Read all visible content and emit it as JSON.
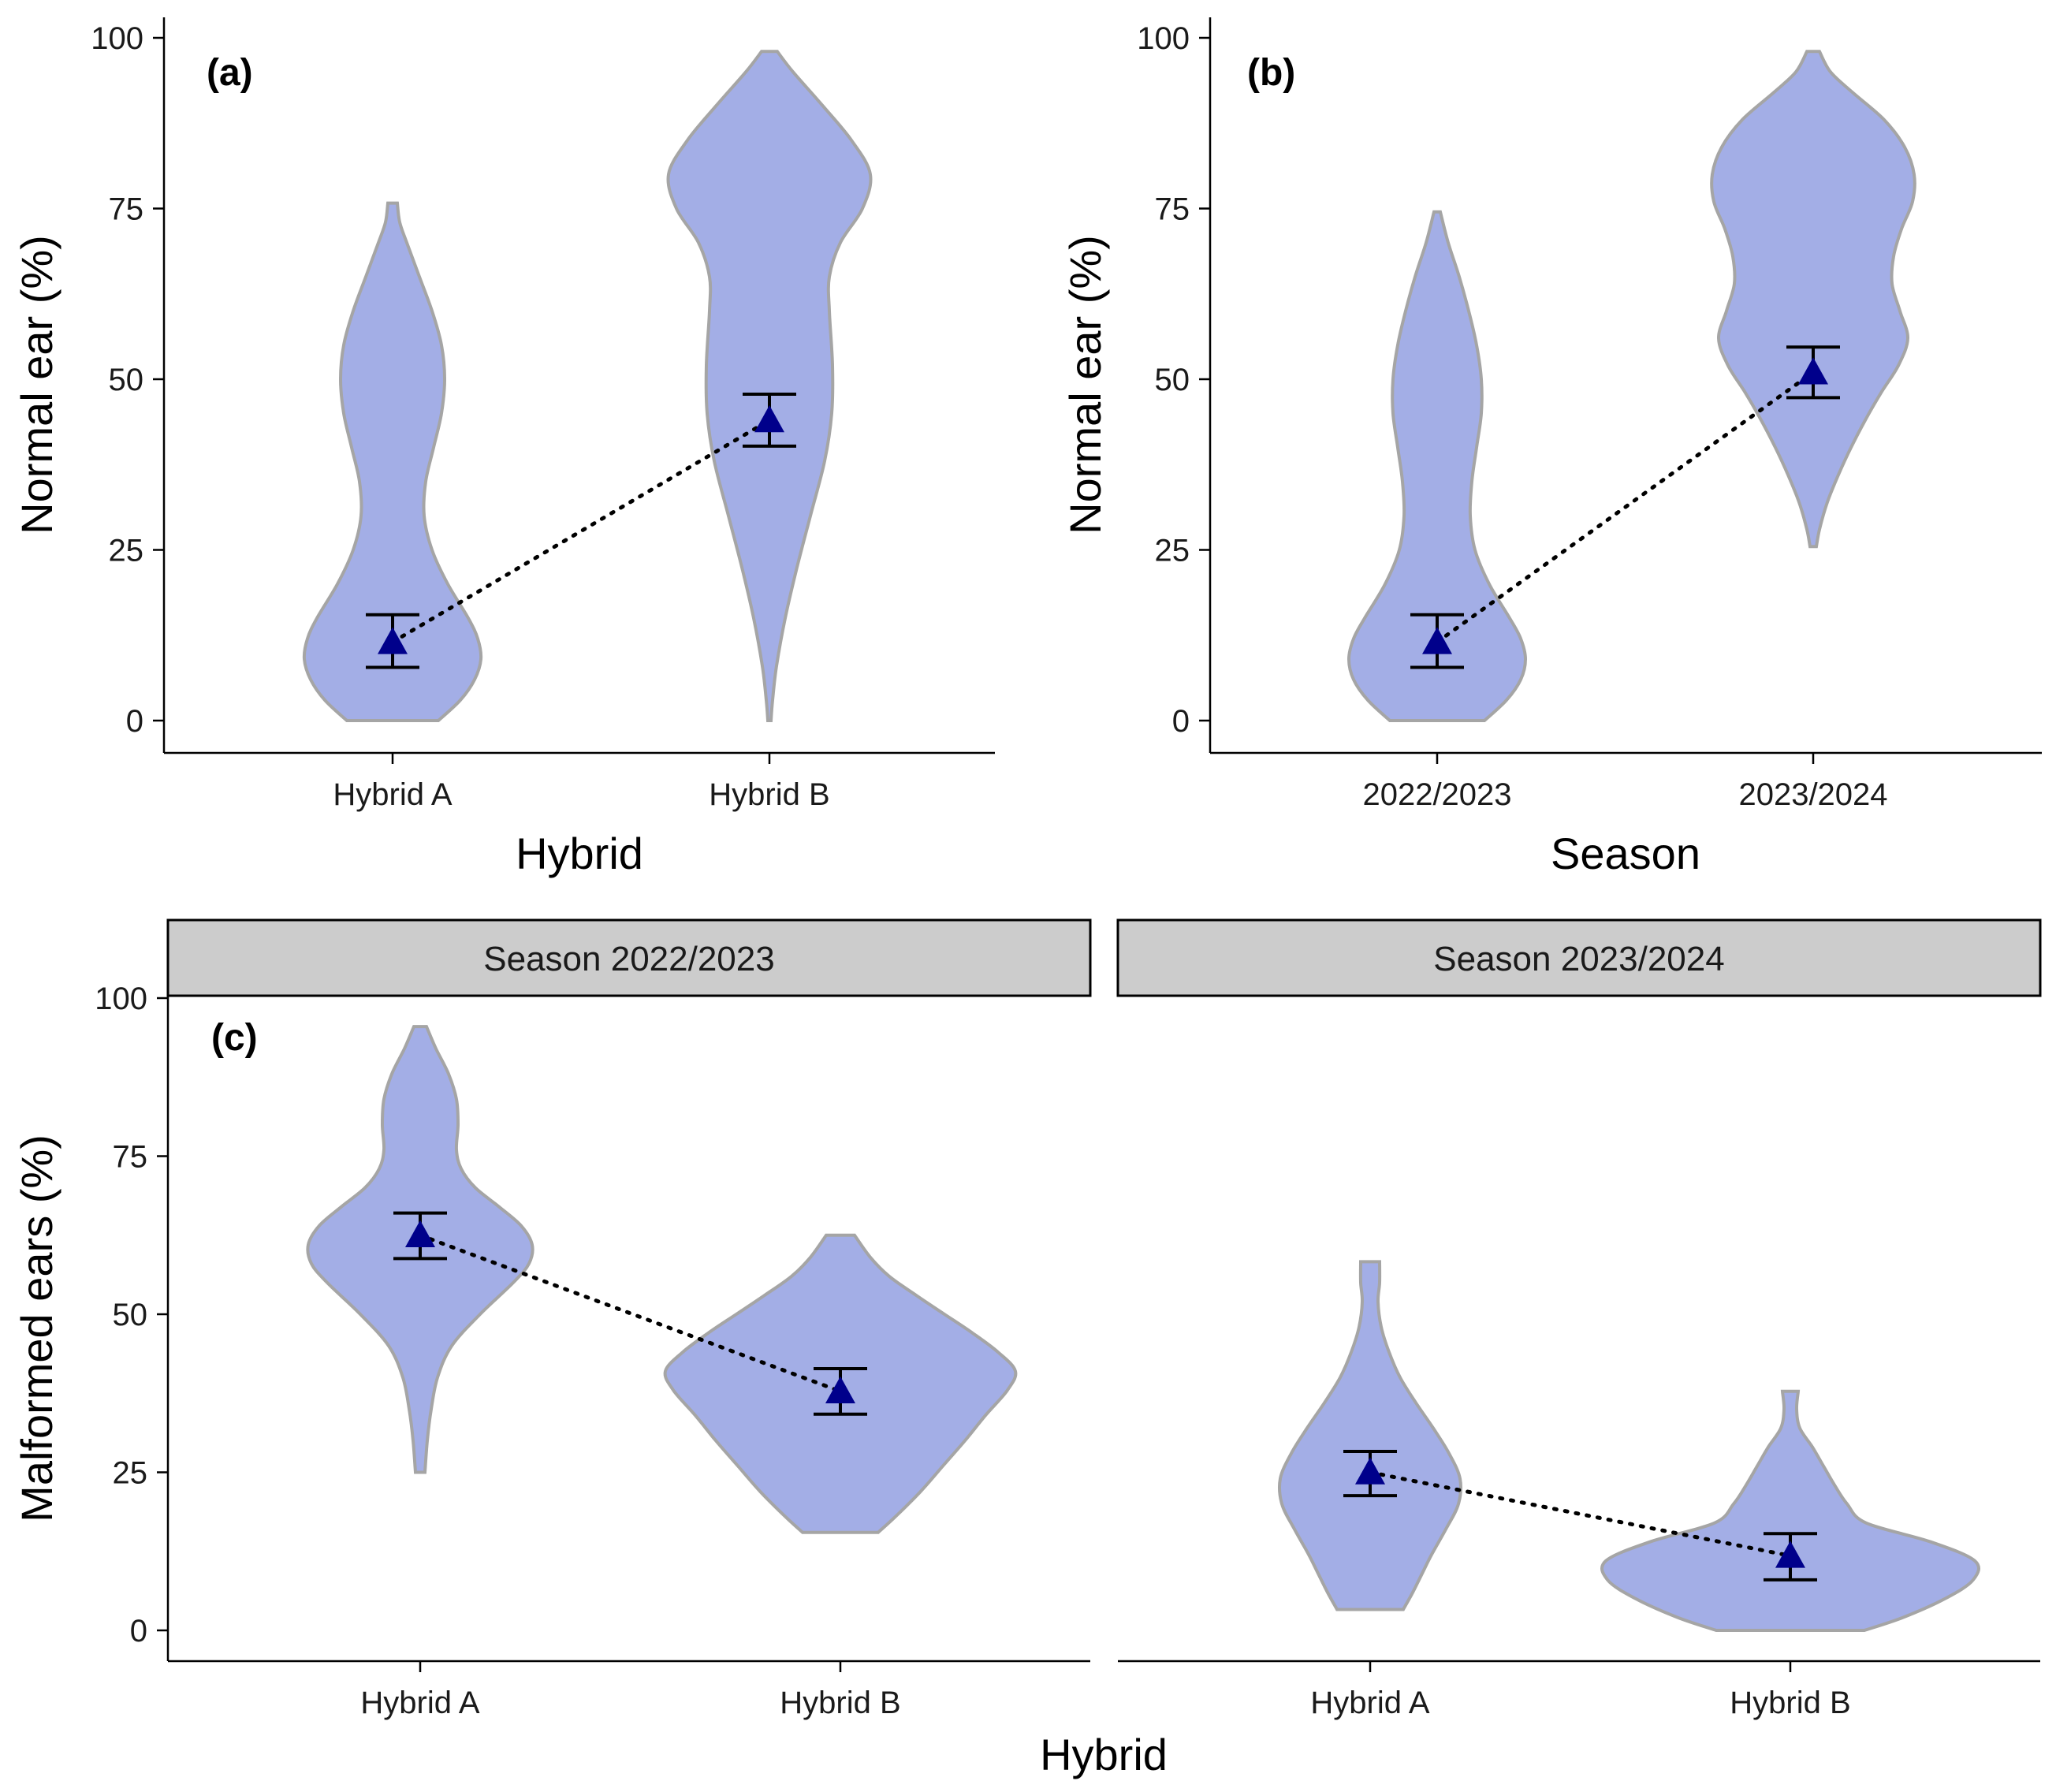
{
  "figure_colors": {
    "violin_fill": "#a3aee6",
    "violin_stroke": "#a5a5a5",
    "mean_marker": "#00008b",
    "strip_fill": "#cccccc"
  },
  "chart_data": [
    {
      "id": "a",
      "type": "violin",
      "panel_label": "(a)",
      "xlabel": "Hybrid",
      "ylabel": "Normal ear (%)",
      "ylim": [
        0,
        100
      ],
      "yticks": [
        0,
        25,
        50,
        75,
        100
      ],
      "categories": [
        "Hybrid A",
        "Hybrid B"
      ],
      "means": [
        11.5,
        44
      ],
      "ci_low": [
        7.8,
        40.2
      ],
      "ci_high": [
        15.5,
        47.8
      ],
      "violins": [
        {
          "y": [
            0,
            3,
            6,
            9,
            12,
            15,
            20,
            25,
            30,
            35,
            40,
            45,
            50,
            55,
            60,
            65,
            70,
            73,
            75.8
          ],
          "halfwidth": [
            58,
            86,
            104,
            112,
            108,
            96,
            70,
            50,
            40,
            42,
            52,
            62,
            66,
            62,
            50,
            34,
            18,
            9,
            6
          ]
        },
        {
          "y": [
            0,
            3,
            8,
            15,
            22,
            30,
            38,
            45,
            52,
            60,
            65,
            70,
            75,
            80,
            85,
            90,
            95,
            98
          ],
          "halfwidth": [
            2,
            4,
            9,
            20,
            34,
            52,
            70,
            79,
            80,
            76,
            76,
            90,
            118,
            128,
            104,
            68,
            30,
            10
          ]
        }
      ]
    },
    {
      "id": "b",
      "type": "violin",
      "panel_label": "(b)",
      "xlabel": "Season",
      "ylabel": "Normal ear (%)",
      "ylim": [
        0,
        100
      ],
      "yticks": [
        0,
        25,
        50,
        75,
        100
      ],
      "categories": [
        "2022/2023",
        "2023/2024"
      ],
      "means": [
        11.5,
        51
      ],
      "ci_low": [
        7.8,
        47.3
      ],
      "ci_high": [
        15.5,
        54.7
      ],
      "violins": [
        {
          "y": [
            0,
            3,
            6,
            9,
            12,
            15,
            20,
            25,
            30,
            35,
            40,
            45,
            50,
            55,
            60,
            65,
            70,
            74.5
          ],
          "halfwidth": [
            60,
            88,
            106,
            112,
            106,
            92,
            66,
            48,
            42,
            44,
            50,
            56,
            56,
            50,
            40,
            28,
            14,
            4
          ]
        },
        {
          "y": [
            25.5,
            28,
            32,
            36,
            40,
            44,
            48,
            52,
            56,
            60,
            64,
            68,
            72,
            76,
            80,
            84,
            88,
            92,
            95,
            98
          ],
          "halfwidth": [
            4,
            8,
            18,
            32,
            48,
            66,
            86,
            108,
            120,
            110,
            100,
            102,
            112,
            126,
            128,
            116,
            90,
            50,
            22,
            8
          ]
        }
      ]
    },
    {
      "id": "c",
      "type": "violin",
      "panel_label": "(c)",
      "xlabel": "Hybrid",
      "ylabel": "Malformed ears (%)",
      "ylim": [
        0,
        100
      ],
      "yticks": [
        0,
        25,
        50,
        75,
        100
      ],
      "facets": [
        {
          "title": "Season 2022/2023",
          "categories": [
            "Hybrid A",
            "Hybrid B"
          ],
          "means": [
            62.5,
            37.8
          ],
          "ci_low": [
            58.8,
            34.2
          ],
          "ci_high": [
            66,
            41.4
          ],
          "violins": [
            {
              "y": [
                25,
                30,
                35,
                40,
                45,
                50,
                55,
                58,
                61,
                64,
                67,
                70,
                73,
                76,
                80,
                84,
                88,
                92,
                95.5
              ],
              "halfwidth": [
                6,
                9,
                14,
                22,
                40,
                76,
                118,
                138,
                142,
                128,
                100,
                70,
                52,
                46,
                48,
                46,
                36,
                20,
                8
              ]
            },
            {
              "y": [
                15.5,
                18,
                22,
                26,
                30,
                34,
                38,
                41,
                44,
                47,
                50,
                53,
                56,
                59,
                62.5
              ],
              "halfwidth": [
                48,
                70,
                102,
                130,
                158,
                184,
                212,
                222,
                200,
                168,
                132,
                96,
                62,
                38,
                18
              ]
            }
          ]
        },
        {
          "title": "Season 2023/2024",
          "categories": [
            "Hybrid A",
            "Hybrid B"
          ],
          "means": [
            25,
            11.8
          ],
          "ci_low": [
            21.3,
            8
          ],
          "ci_high": [
            28.3,
            15.3
          ],
          "violins": [
            {
              "y": [
                3.3,
                6,
                9,
                12,
                16,
                20,
                24,
                28,
                32,
                36,
                40,
                44,
                48,
                52,
                55,
                58.3
              ],
              "halfwidth": [
                42,
                54,
                66,
                78,
                96,
                112,
                114,
                100,
                80,
                58,
                38,
                24,
                14,
                10,
                12,
                12
              ]
            },
            {
              "y": [
                0,
                2,
                5,
                8,
                11,
                14,
                17,
                20,
                23,
                26,
                29,
                32,
                35,
                37.8
              ],
              "halfwidth": [
                94,
                142,
                196,
                232,
                234,
                178,
                96,
                72,
                56,
                42,
                28,
                12,
                8,
                10
              ]
            }
          ]
        }
      ]
    }
  ]
}
